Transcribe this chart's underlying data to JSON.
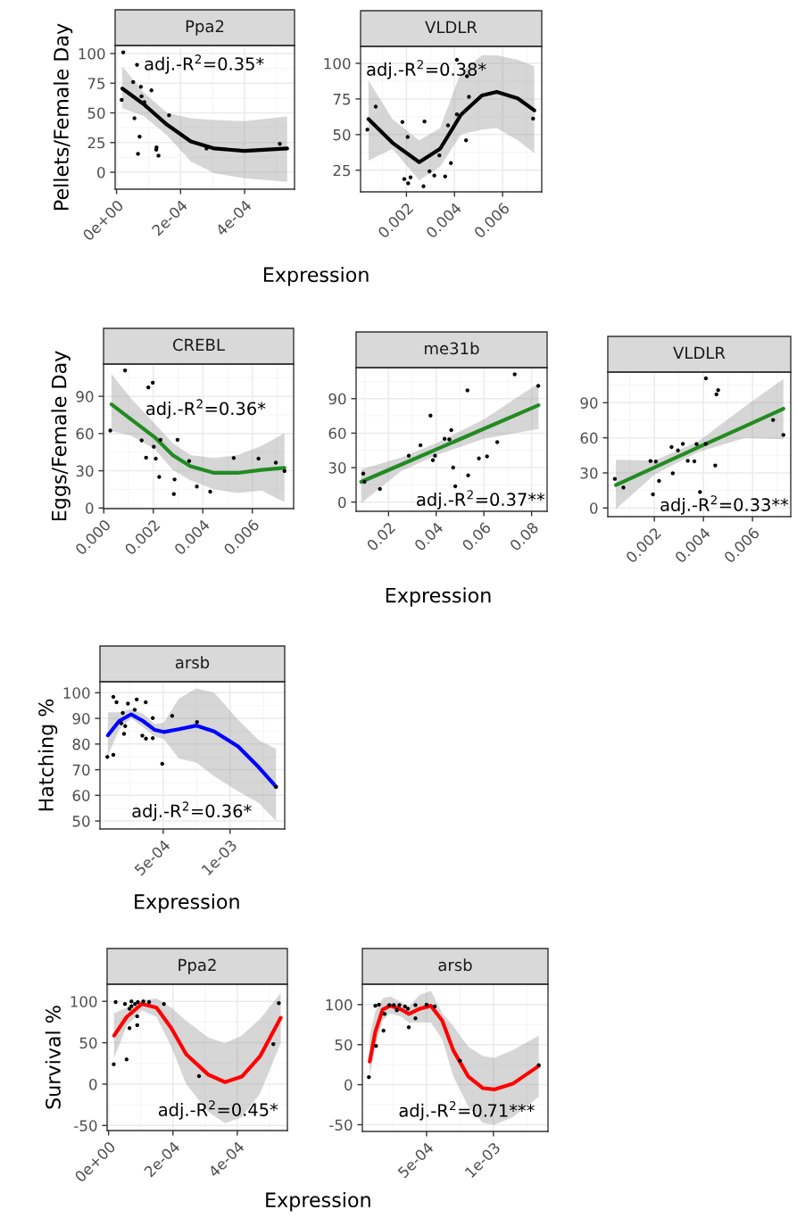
{
  "chart_data": [
    {
      "type": "scatter",
      "title": "Ppa2",
      "ylabel": "Pellets/Female Day",
      "xlabel": "Expression",
      "annotations": [
        "adj.-R$^{2}$=0.35*"
      ],
      "xlim": [
        -4.4e-06,
        0.000556
      ],
      "ylim": [
        -14.25,
        106.75
      ],
      "xticks": [
        {
          "value": 0,
          "label": "0e+00"
        },
        {
          "value": 0.0002,
          "label": "2e-04"
        },
        {
          "value": 0.0004,
          "label": "4e-04"
        }
      ],
      "yticks": [
        0,
        25,
        50,
        75,
        100
      ],
      "grid": true,
      "series": [
        {
          "marker": "circle",
          "color": "#000000",
          "x": [
            2.1e-05,
            6.4e-05,
            5.2e-05,
            7.6e-05,
            1.6e-05,
            0.000109,
            7.8e-05,
            8.7e-05,
            9.1e-05,
            5.6e-05,
            7.2e-05,
            6.7e-05,
            0.000125,
            0.000124,
            0.000131,
            0.000164,
            0.000281,
            0.00051
          ],
          "values": [
            101,
            90.5,
            76,
            72,
            61,
            69,
            64,
            59,
            56,
            45.5,
            30,
            15.5,
            21,
            19,
            14,
            48,
            20,
            24
          ]
        },
        {
          "type": "line",
          "color": "#000000",
          "x": [
            1.8e-05,
            8.4e-05,
            0.000158,
            0.000232,
            0.000306,
            0.000399,
            0.000533
          ],
          "values": [
            70.5,
            57.5,
            40,
            26,
            20,
            18,
            20
          ],
          "lower": [
            54,
            47.5,
            31,
            9,
            -1,
            -5,
            -8
          ],
          "upper": [
            89,
            67.5,
            50,
            45.5,
            44,
            43,
            47
          ]
        }
      ]
    },
    {
      "type": "scatter",
      "title": "VLDLR",
      "annotations": [
        "adj.-R$^{2}$=0.38*"
      ],
      "xlim": [
        9e-05,
        0.00763
      ],
      "ylim": [
        9.8,
        111.9
      ],
      "xticks": [
        0.002,
        0.004,
        0.006
      ],
      "yticks": [
        25,
        50,
        75,
        100
      ],
      "grid": true,
      "series": [
        {
          "marker": "circle",
          "color": "#000000",
          "x": [
            0.000373,
            0.00072,
            0.00183,
            0.00275,
            0.00205,
            0.00191,
            0.00207,
            0.00217,
            0.00271,
            0.00296,
            0.00316,
            0.00337,
            0.00361,
            0.00385,
            0.00373,
            0.0041,
            0.0046,
            0.00448,
            0.0041,
            0.00452,
            0.00727
          ],
          "values": [
            53.5,
            69.6,
            58.8,
            59.2,
            48.3,
            18.8,
            15.8,
            20,
            13.75,
            24.2,
            21.25,
            35.4,
            20.6,
            30,
            56.5,
            64.2,
            76.5,
            46,
            102.5,
            91,
            61.25
          ]
        },
        {
          "type": "line",
          "color": "#000000",
          "x": [
            0.00042,
            0.00142,
            0.00253,
            0.0034,
            0.00427,
            0.00514,
            0.00576,
            0.00663,
            0.00732
          ],
          "values": [
            60.8,
            44.2,
            30.6,
            40,
            64,
            77.5,
            80,
            75.4,
            67
          ],
          "lower": [
            31.7,
            40,
            18,
            27.5,
            50,
            53.5,
            54.6,
            46,
            37
          ],
          "upper": [
            87.9,
            60.8,
            46,
            54.6,
            94,
            105.6,
            105.6,
            102.5,
            98
          ]
        }
      ]
    },
    {
      "type": "scatter",
      "title": "CREBL",
      "ylabel": "Eggs/Female Day",
      "annotations": [
        "adj.-R$^{2}$=0.36*"
      ],
      "xlim": [
        -1e-05,
        0.00767
      ],
      "ylim": [
        -0.5,
        116
      ],
      "xticks": [
        {
          "value": 0,
          "label": "0.000"
        },
        0.002,
        0.004,
        0.006
      ],
      "yticks": [
        0,
        30,
        60,
        90
      ],
      "grid": true,
      "series": [
        {
          "marker": "circle",
          "color": "#000000",
          "x": [
            0.000263,
            0.00086,
            0.0018,
            0.00198,
            0.00153,
            0.00202,
            0.00229,
            0.00298,
            0.00171,
            0.0021,
            0.00224,
            0.00286,
            0.00283,
            0.00345,
            0.00376,
            0.0043,
            0.00525,
            0.00625,
            0.00695,
            0.0073
          ],
          "values": [
            62.4,
            110.9,
            97.2,
            101,
            54.5,
            49.4,
            55,
            55,
            40.6,
            39.8,
            25,
            23,
            11.3,
            37.9,
            17.3,
            13.2,
            40.3,
            39.8,
            36.5,
            29.8
          ]
        },
        {
          "type": "line",
          "color": "#228b22",
          "x": [
            0.00031,
            0.0011,
            0.00206,
            0.00278,
            0.0035,
            0.00446,
            0.00541,
            0.00637,
            0.0073
          ],
          "values": [
            83.5,
            71.5,
            57,
            42.7,
            33.6,
            28.3,
            28.3,
            30.7,
            32.4
          ],
          "lower": [
            62,
            58.3,
            47.5,
            30.7,
            22.3,
            15,
            12,
            14,
            4.8
          ],
          "upper": [
            108,
            88.3,
            68,
            52.3,
            42.7,
            40.3,
            42.7,
            50,
            60.2
          ]
        }
      ]
    },
    {
      "type": "scatter",
      "title": "me31b",
      "xlabel": "Expression",
      "annotations": [
        "adj.-R$^{2}$=0.37**"
      ],
      "xlim": [
        0.0064,
        0.0865
      ],
      "ylim": [
        -8,
        117
      ],
      "xticks": [
        0.02,
        0.04,
        0.06,
        0.08
      ],
      "yticks": [
        0,
        30,
        60,
        90
      ],
      "grid": true,
      "series": [
        {
          "marker": "circle",
          "color": "#000000",
          "x": [
            0.0094,
            0.0099,
            0.0164,
            0.0285,
            0.0334,
            0.0376,
            0.0386,
            0.0395,
            0.0435,
            0.0455,
            0.0463,
            0.0471,
            0.048,
            0.0534,
            0.0531,
            0.0579,
            0.0613,
            0.0656,
            0.0729,
            0.0828
          ],
          "values": [
            24.8,
            17.6,
            11.4,
            40.3,
            49.4,
            75.3,
            36.5,
            40.3,
            55.1,
            54.6,
            62.6,
            30,
            13.7,
            23.3,
            97.2,
            38,
            39.8,
            52.2,
            111.2,
            101.1
          ]
        },
        {
          "type": "line",
          "color": "#228b22",
          "x": [
            0.0085,
            0.025,
            0.04,
            0.06,
            0.0829
          ],
          "values": [
            17.6,
            32.4,
            45.8,
            63.8,
            84.3
          ],
          "lower": [
            -1,
            26.5,
            40.9,
            55,
            63.6
          ],
          "upper": [
            28.4,
            38.5,
            51.2,
            72,
            103.4
          ]
        }
      ]
    },
    {
      "type": "scatter",
      "title": "VLDLR",
      "annotations": [
        "adj.-R$^{2}$=0.33**"
      ],
      "xlim": [
        0.0001,
        0.00756
      ],
      "ylim": [
        -7.4,
        116.2
      ],
      "xticks": [
        0.002,
        0.004,
        0.006
      ],
      "yticks": [
        0,
        30,
        60,
        90
      ],
      "grid": true,
      "series": [
        {
          "marker": "circle",
          "color": "#000000",
          "x": [
            0.000386,
            0.000737,
            0.00184,
            0.00206,
            0.00194,
            0.00219,
            0.0027,
            0.00275,
            0.00296,
            0.00316,
            0.00336,
            0.00363,
            0.00372,
            0.00386,
            0.0041,
            0.0041,
            0.00453,
            0.0046,
            0.00448,
            0.00684,
            0.00726
          ],
          "values": [
            24.9,
            17.5,
            40.2,
            39.7,
            11.7,
            23.1,
            52.1,
            29.7,
            49.3,
            54.9,
            40.4,
            39.9,
            54.7,
            13.7,
            54.9,
            110.9,
            97.1,
            100.7,
            36.4,
            75.3,
            62.5
          ]
        },
        {
          "type": "line",
          "color": "#228b22",
          "x": [
            0.00043,
            0.002,
            0.0038,
            0.0057,
            0.00726
          ],
          "values": [
            19.6,
            34.6,
            52,
            70,
            84.9
          ],
          "lower": [
            -1,
            28.5,
            48,
            60,
            58.7
          ],
          "upper": [
            41.2,
            40.5,
            57,
            87,
            110.3
          ]
        }
      ]
    },
    {
      "type": "scatter",
      "title": "arsb",
      "ylabel": "Hatching %",
      "xlabel": "Expression",
      "annotations": [
        "adj.-R$^{2}$=0.36*"
      ],
      "xlim": [
        2.7e-05,
        0.001409
      ],
      "ylim": [
        46.9,
        104.3
      ],
      "xticks": [
        {
          "value": 0.0005,
          "label": "5e-04"
        },
        {
          "value": 0.001,
          "label": "1e-03"
        }
      ],
      "yticks": [
        50,
        60,
        70,
        80,
        90,
        100
      ],
      "grid": true,
      "series": [
        {
          "marker": "circle",
          "color": "#000000",
          "x": [
            8.22e-05,
            0.000127,
            0.000127,
            0.000151,
            0.000198,
            0.000187,
            0.000216,
            0.000207,
            0.000236,
            0.000287,
            0.000302,
            0.000344,
            0.000371,
            0.000369,
            0.000422,
            0.000422,
            0.000493,
            0.000567,
            0.000753,
            0.001344
          ],
          "values": [
            75,
            75.8,
            98.4,
            96.3,
            92.1,
            88.1,
            87,
            84,
            95.8,
            93.4,
            97.4,
            83.3,
            82.1,
            96.3,
            90.1,
            82.3,
            72.3,
            91,
            88.6,
            63.3
          ]
        },
        {
          "type": "line",
          "color": "#0000ff",
          "x": [
            8.67e-05,
            0.000171,
            0.00026,
            0.000349,
            0.000438,
            0.000504,
            0.000616,
            0.000749,
            0.000882,
            0.00106,
            0.001216,
            0.001344
          ],
          "values": [
            83.4,
            89,
            91.6,
            89,
            85.5,
            84.7,
            85.8,
            87.2,
            84.9,
            79.1,
            70.9,
            63.4
          ],
          "lower": [
            75.6,
            85.5,
            90.1,
            86.6,
            82.8,
            82,
            74.4,
            72.7,
            67.4,
            61.6,
            57,
            50
          ],
          "upper": [
            92.4,
            92.4,
            93.6,
            91.9,
            87.8,
            88.4,
            97.7,
            101.7,
            100,
            89.5,
            81.4,
            78.1
          ]
        }
      ]
    },
    {
      "type": "scatter",
      "title": "Ppa2",
      "ylabel": "Survival %",
      "xlabel": "Expression",
      "annotations": [
        "adj.-R$^{2}$=0.45*"
      ],
      "xlim": [
        -4.6e-06,
        0.0005556
      ],
      "ylim": [
        -56.1,
        120.7
      ],
      "xticks": [
        {
          "value": 0,
          "label": "0e+00"
        },
        {
          "value": 0.0002,
          "label": "2e-04"
        },
        {
          "value": 0.0004,
          "label": "4e-04"
        }
      ],
      "yticks": [
        -50,
        0,
        50,
        100
      ],
      "grid": true,
      "series": [
        {
          "marker": "circle",
          "color": "#000000",
          "x": [
            1.6e-05,
            2.2e-05,
            5.6e-05,
            5.1e-05,
            6.5e-05,
            7.1e-05,
            6.5e-05,
            7.1e-05,
            8.2e-05,
            8.9e-05,
            8.9e-05,
            9.1e-05,
            0.000108,
            0.000126,
            0.000172,
            0.000281,
            0.000512,
            0.000529
          ],
          "values": [
            24,
            99.1,
            29.8,
            96.9,
            67.6,
            100,
            91,
            94.2,
            96.9,
            71.2,
            82,
            99.1,
            100,
            99.1,
            96.9,
            9.6,
            48.3,
            97.8
          ]
        },
        {
          "type": "line",
          "color": "#ff0000",
          "x": [
            1.7e-05,
            5.6e-05,
            0.000103,
            0.000149,
            0.000195,
            0.000241,
            0.00031,
            0.000362,
            0.000414,
            0.000471,
            0.000535
          ],
          "values": [
            58.6,
            81.1,
            96.9,
            92.4,
            67.6,
            36.1,
            11.4,
            2.4,
            9.1,
            33.9,
            80.2
          ],
          "lower": [
            31.6,
            69.9,
            89.2,
            81.1,
            45.1,
            0.1,
            -33.6,
            -47.1,
            -40.3,
            -11.1,
            49.6
          ],
          "upper": [
            85.6,
            92.4,
            101.3,
            103.6,
            92.4,
            76.6,
            56.4,
            49.6,
            58.6,
            78.9,
            110.3
          ]
        }
      ]
    },
    {
      "type": "scatter",
      "title": "arsb",
      "annotations": [
        "adj.-R$^{2}$=0.71***"
      ],
      "xlim": [
        2e-05,
        0.001408
      ],
      "ylim": [
        -58.4,
        125.5
      ],
      "xticks": [
        {
          "value": 0.0005,
          "label": "5e-04"
        },
        {
          "value": 0.001,
          "label": "1e-03"
        }
      ],
      "yticks": [
        -50,
        0,
        50,
        100
      ],
      "grid": true,
      "series": [
        {
          "marker": "circle",
          "color": "#000000",
          "x": [
            6.9e-05,
            0.000122,
            0.000117,
            0.000144,
            0.000178,
            0.000186,
            0.000222,
            0.000256,
            0.000278,
            0.000297,
            0.000339,
            0.000361,
            0.000367,
            0.000417,
            0.000417,
            0.0005,
            0.000561,
            0.00075,
            0.001339
          ],
          "values": [
            9.4,
            48.4,
            98.6,
            100,
            67.5,
            88.4,
            99.5,
            99.5,
            93,
            99.5,
            97.7,
            94.9,
            71.7,
            82.8,
            99.5,
            100,
            97.7,
            29.9,
            24.3
          ]
        },
        {
          "type": "line",
          "color": "#ff0000",
          "x": [
            7.5e-05,
            0.000117,
            0.000172,
            0.000228,
            0.000311,
            0.000367,
            0.00045,
            0.000533,
            0.000617,
            0.0007,
            0.000811,
            0.000922,
            0.001006,
            0.001144,
            0.001339
          ],
          "values": [
            28.9,
            66.1,
            94,
            98.6,
            94,
            88.4,
            94.9,
            98.6,
            80,
            42.9,
            10.4,
            -4.4,
            -5.9,
            1.1,
            23.4
          ],
          "lower": [
            10.4,
            47.5,
            80,
            89.3,
            84.7,
            77.7,
            77.7,
            77.7,
            56.8,
            10.4,
            -26.8,
            -47.7,
            -50,
            -40.7,
            -15.2
          ],
          "upper": [
            61.4,
            91.6,
            107.9,
            110.2,
            103.3,
            97.7,
            112.5,
            117.2,
            89.3,
            73.1,
            47.5,
            35.8,
            33.6,
            42.9,
            61.4
          ]
        }
      ]
    }
  ]
}
